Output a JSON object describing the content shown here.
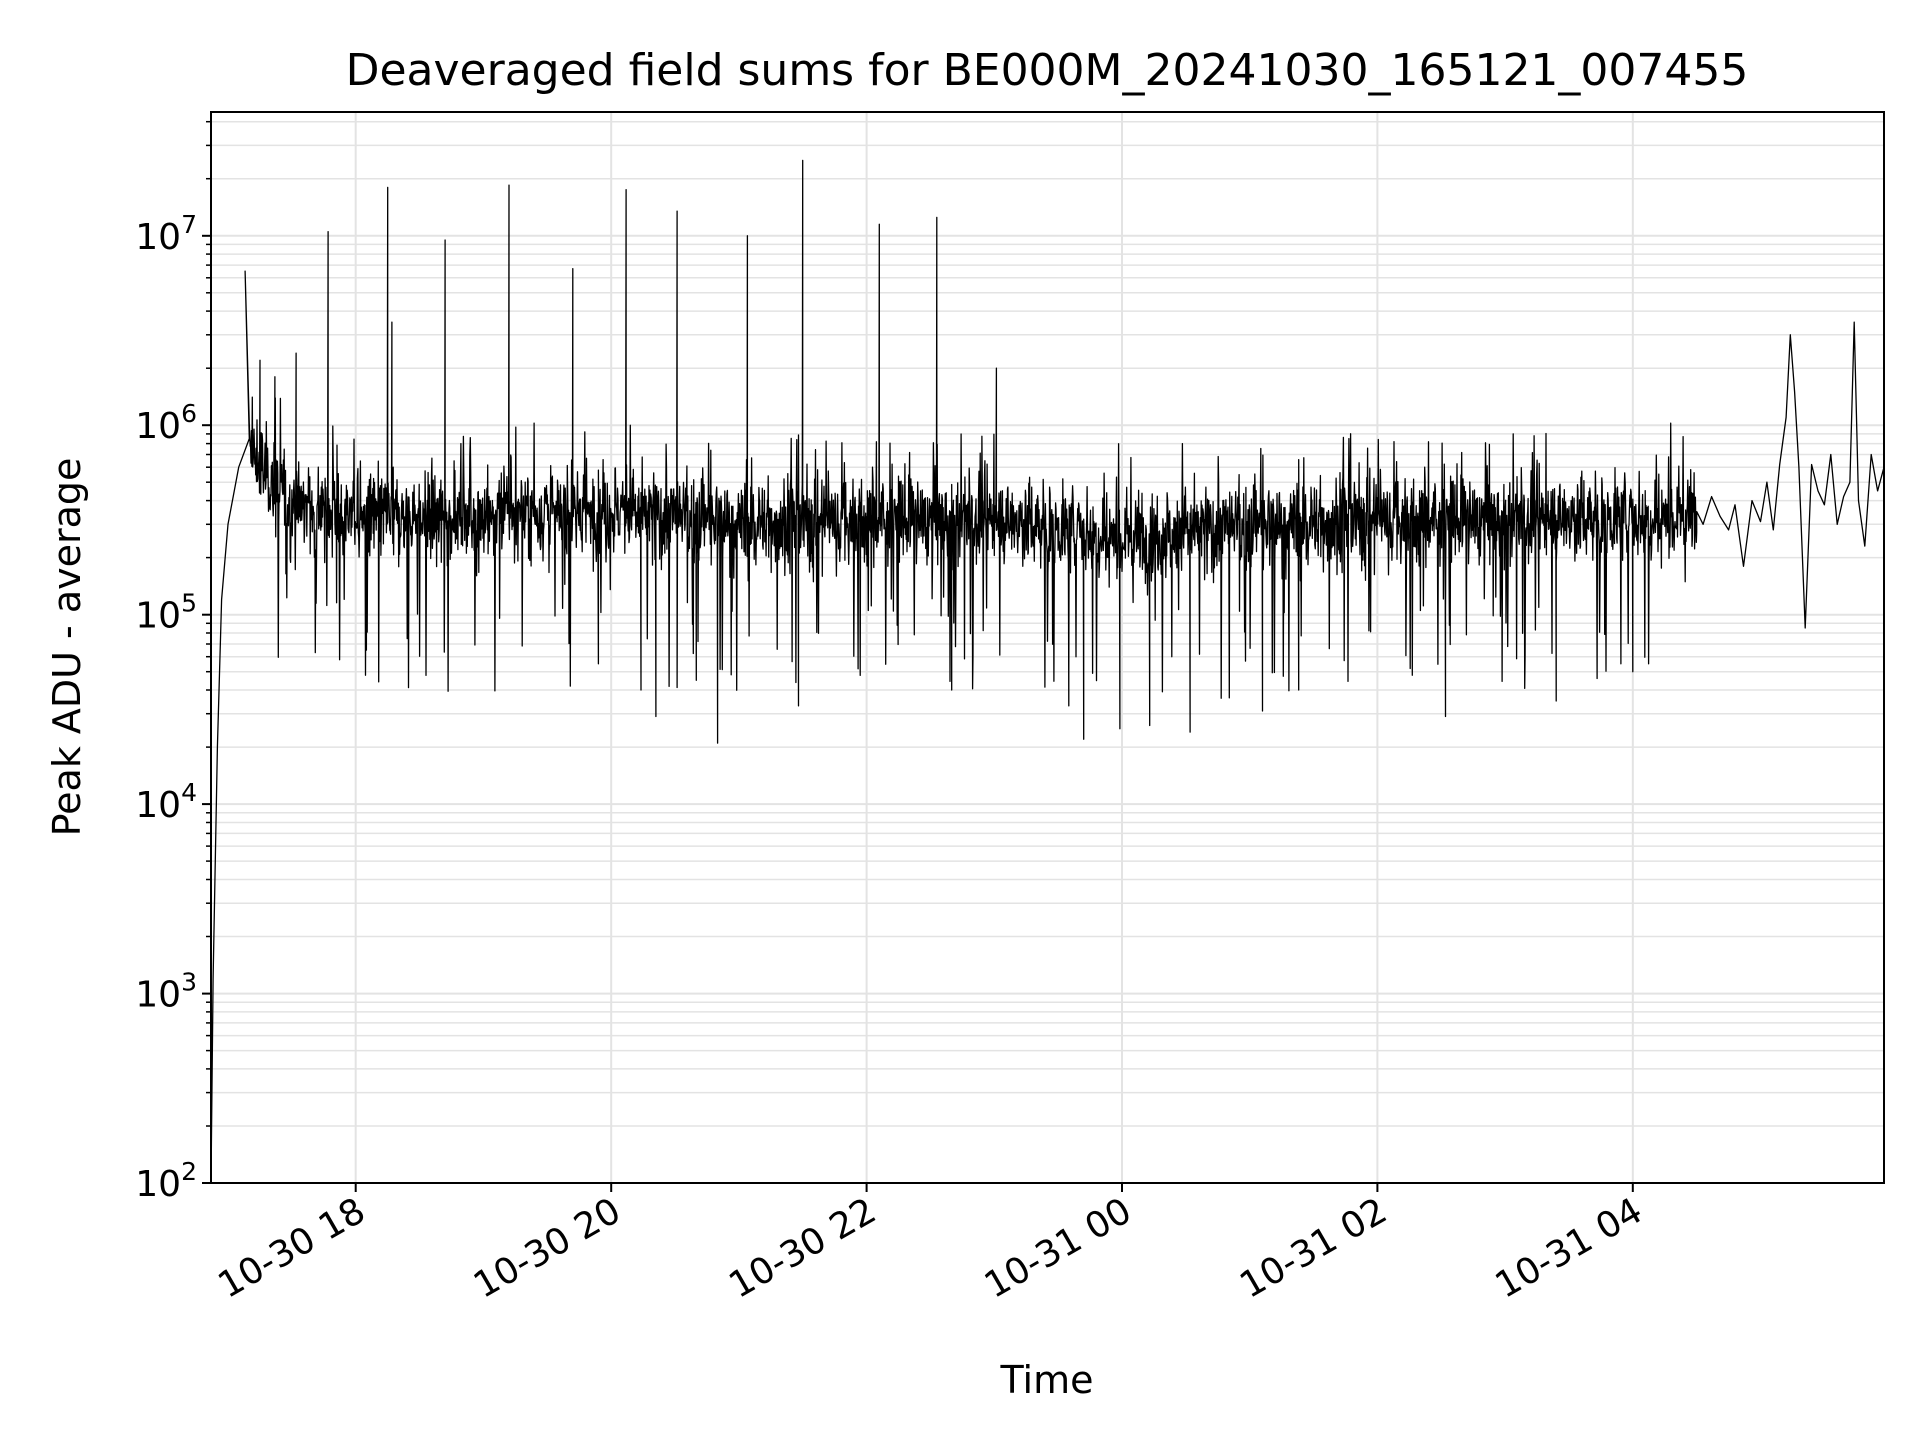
{
  "chart_data": {
    "type": "line",
    "title": "Deaveraged field sums for BE000M_20241030_165121_007455",
    "xlabel": "Time",
    "ylabel": "Peak ADU - average",
    "yscale": "log",
    "ylim": [
      100,
      45000000
    ],
    "xlim": [
      "2024-10-30 16:52",
      "2024-10-31 05:58"
    ],
    "grid": true,
    "line_color": "#000000",
    "grid_color": "#e3e3e3",
    "x_ticks": [
      {
        "label": "10-30 18",
        "time": "2024-10-30 18:00"
      },
      {
        "label": "10-30 20",
        "time": "2024-10-30 20:00"
      },
      {
        "label": "10-30 22",
        "time": "2024-10-30 22:00"
      },
      {
        "label": "10-31 00",
        "time": "2024-10-31 00:00"
      },
      {
        "label": "10-31 02",
        "time": "2024-10-31 02:00"
      },
      {
        "label": "10-31 04",
        "time": "2024-10-31 04:00"
      }
    ],
    "y_ticks": [
      {
        "base": "10",
        "exp": "2",
        "value": 100
      },
      {
        "base": "10",
        "exp": "3",
        "value": 1000
      },
      {
        "base": "10",
        "exp": "4",
        "value": 10000
      },
      {
        "base": "10",
        "exp": "5",
        "value": 100000
      },
      {
        "base": "10",
        "exp": "6",
        "value": 1000000
      },
      {
        "base": "10",
        "exp": "7",
        "value": 10000000
      }
    ],
    "ramp": [
      {
        "time": "2024-10-30 16:52",
        "value": 100
      },
      {
        "time": "2024-10-30 16:53",
        "value": 1200
      },
      {
        "time": "2024-10-30 16:55",
        "value": 20000
      },
      {
        "time": "2024-10-30 16:57",
        "value": 120000
      },
      {
        "time": "2024-10-30 17:00",
        "value": 300000
      },
      {
        "time": "2024-10-30 17:05",
        "value": 600000
      },
      {
        "time": "2024-10-30 17:10",
        "value": 850000
      }
    ],
    "baseline": [
      {
        "time": "2024-10-30 17:10",
        "value": 700000
      },
      {
        "time": "2024-10-30 17:30",
        "value": 380000
      },
      {
        "time": "2024-10-30 18:00",
        "value": 330000
      },
      {
        "time": "2024-10-30 19:00",
        "value": 330000
      },
      {
        "time": "2024-10-30 20:00",
        "value": 350000
      },
      {
        "time": "2024-10-30 21:00",
        "value": 300000
      },
      {
        "time": "2024-10-30 22:00",
        "value": 320000
      },
      {
        "time": "2024-10-30 23:00",
        "value": 320000
      },
      {
        "time": "2024-10-31 00:00",
        "value": 260000
      },
      {
        "time": "2024-10-31 01:00",
        "value": 290000
      },
      {
        "time": "2024-10-31 02:00",
        "value": 320000
      },
      {
        "time": "2024-10-31 03:00",
        "value": 320000
      },
      {
        "time": "2024-10-31 04:00",
        "value": 330000
      },
      {
        "time": "2024-10-31 04:30",
        "value": 340000
      }
    ],
    "noise_end": "2024-10-31 04:30",
    "sparse_segment": [
      {
        "time": "2024-10-31 04:30",
        "value": 350000
      },
      {
        "time": "2024-10-31 04:33",
        "value": 300000
      },
      {
        "time": "2024-10-31 04:37",
        "value": 420000
      },
      {
        "time": "2024-10-31 04:41",
        "value": 330000
      },
      {
        "time": "2024-10-31 04:45",
        "value": 280000
      },
      {
        "time": "2024-10-31 04:48",
        "value": 380000
      },
      {
        "time": "2024-10-31 04:52",
        "value": 180000
      },
      {
        "time": "2024-10-31 04:56",
        "value": 400000
      },
      {
        "time": "2024-10-31 05:00",
        "value": 310000
      },
      {
        "time": "2024-10-31 05:03",
        "value": 500000
      },
      {
        "time": "2024-10-31 05:06",
        "value": 280000
      },
      {
        "time": "2024-10-31 05:09",
        "value": 620000
      },
      {
        "time": "2024-10-31 05:12",
        "value": 1100000
      },
      {
        "time": "2024-10-31 05:14",
        "value": 3000000
      },
      {
        "time": "2024-10-31 05:16",
        "value": 1500000
      },
      {
        "time": "2024-10-31 05:18",
        "value": 600000
      },
      {
        "time": "2024-10-31 05:21",
        "value": 85000
      },
      {
        "time": "2024-10-31 05:24",
        "value": 620000
      },
      {
        "time": "2024-10-31 05:27",
        "value": 450000
      },
      {
        "time": "2024-10-31 05:30",
        "value": 380000
      },
      {
        "time": "2024-10-31 05:33",
        "value": 700000
      },
      {
        "time": "2024-10-31 05:36",
        "value": 300000
      },
      {
        "time": "2024-10-31 05:39",
        "value": 420000
      },
      {
        "time": "2024-10-31 05:42",
        "value": 500000
      },
      {
        "time": "2024-10-31 05:44",
        "value": 3500000
      },
      {
        "time": "2024-10-31 05:46",
        "value": 400000
      },
      {
        "time": "2024-10-31 05:49",
        "value": 230000
      },
      {
        "time": "2024-10-31 05:52",
        "value": 700000
      },
      {
        "time": "2024-10-31 05:55",
        "value": 450000
      },
      {
        "time": "2024-10-31 05:58",
        "value": 600000
      }
    ],
    "spikes": [
      {
        "time": "2024-10-30 17:08",
        "value": 6500000
      },
      {
        "time": "2024-10-30 17:15",
        "value": 2200000
      },
      {
        "time": "2024-10-30 17:22",
        "value": 1800000
      },
      {
        "time": "2024-10-30 17:32",
        "value": 2400000
      },
      {
        "time": "2024-10-30 17:47",
        "value": 10500000
      },
      {
        "time": "2024-10-30 18:15",
        "value": 18000000
      },
      {
        "time": "2024-10-30 18:17",
        "value": 3500000
      },
      {
        "time": "2024-10-30 18:42",
        "value": 9500000
      },
      {
        "time": "2024-10-30 19:12",
        "value": 18500000
      },
      {
        "time": "2024-10-30 19:42",
        "value": 6700000
      },
      {
        "time": "2024-10-30 20:07",
        "value": 17500000
      },
      {
        "time": "2024-10-30 20:31",
        "value": 13500000
      },
      {
        "time": "2024-10-30 21:04",
        "value": 10000000
      },
      {
        "time": "2024-10-30 21:30",
        "value": 25000000
      },
      {
        "time": "2024-10-30 22:06",
        "value": 11500000
      },
      {
        "time": "2024-10-30 22:33",
        "value": 12500000
      },
      {
        "time": "2024-10-30 23:01",
        "value": 2000000
      }
    ],
    "dips": [
      {
        "time": "2024-10-30 18:05",
        "value": 65000
      },
      {
        "time": "2024-10-30 19:54",
        "value": 55000
      },
      {
        "time": "2024-10-30 20:14",
        "value": 40000
      },
      {
        "time": "2024-10-30 20:21",
        "value": 29000
      },
      {
        "time": "2024-10-30 20:40",
        "value": 45000
      },
      {
        "time": "2024-10-30 20:50",
        "value": 21000
      },
      {
        "time": "2024-10-30 21:28",
        "value": 33000
      },
      {
        "time": "2024-10-30 22:40",
        "value": 40000
      },
      {
        "time": "2024-10-30 23:35",
        "value": 33000
      },
      {
        "time": "2024-10-30 23:42",
        "value": 22000
      },
      {
        "time": "2024-10-30 23:59",
        "value": 25000
      },
      {
        "time": "2024-10-31 00:13",
        "value": 26000
      },
      {
        "time": "2024-10-31 00:32",
        "value": 24000
      },
      {
        "time": "2024-10-31 01:06",
        "value": 31000
      },
      {
        "time": "2024-10-31 01:23",
        "value": 40000
      },
      {
        "time": "2024-10-31 02:32",
        "value": 29000
      },
      {
        "time": "2024-10-31 03:24",
        "value": 35000
      },
      {
        "time": "2024-10-31 04:00",
        "value": 50000
      }
    ]
  }
}
